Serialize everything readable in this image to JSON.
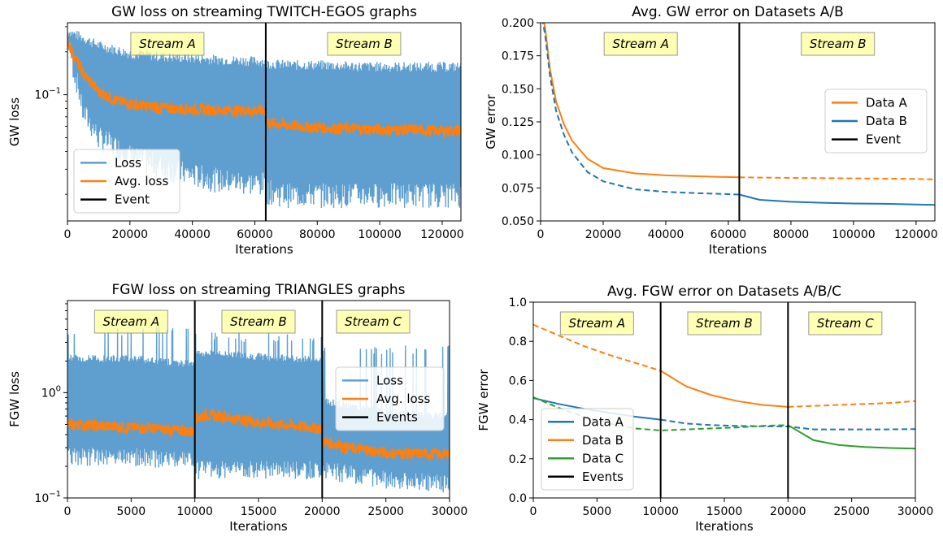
{
  "colors": {
    "loss": "#5f9fcf",
    "blue": "#1f77b4",
    "orange": "#ff7f0e",
    "green": "#2ca02c",
    "event": "#000000",
    "stream_box": "#ffff99"
  },
  "chart_data": [
    {
      "type": "line",
      "title": "GW loss on streaming TWITCH-EGOS graphs",
      "xlabel": "Iterations",
      "ylabel": "GW loss",
      "yscale": "log",
      "xlim": [
        0,
        126000
      ],
      "ylim": [
        0.013,
        0.32
      ],
      "xticks": [
        0,
        20000,
        40000,
        60000,
        80000,
        100000,
        120000
      ],
      "yticks": [
        {
          "value": 0.1,
          "base": "10",
          "exp": "−1"
        }
      ],
      "events": [
        63500
      ],
      "streams": [
        {
          "label": "Stream A",
          "x": 32000
        },
        {
          "label": "Stream B",
          "x": 95000
        }
      ],
      "legend": {
        "position": "lower-left",
        "entries": [
          {
            "label": "Loss",
            "color": "#5f9fcf"
          },
          {
            "label": "Avg. loss",
            "color": "#ff7f0e"
          },
          {
            "label": "Event",
            "color": "#000000"
          }
        ]
      },
      "series": [
        {
          "name": "Loss",
          "kind": "band",
          "color": "#5f9fcf",
          "x": [
            0,
            2000,
            5000,
            10000,
            20000,
            30000,
            40000,
            50000,
            63500,
            63600,
            70000,
            80000,
            90000,
            100000,
            110000,
            120000,
            126000
          ],
          "low": [
            0.2,
            0.12,
            0.06,
            0.04,
            0.03,
            0.025,
            0.022,
            0.02,
            0.019,
            0.017,
            0.016,
            0.016,
            0.016,
            0.016,
            0.016,
            0.016,
            0.016
          ],
          "high": [
            0.3,
            0.29,
            0.27,
            0.24,
            0.21,
            0.2,
            0.195,
            0.19,
            0.185,
            0.18,
            0.175,
            0.175,
            0.172,
            0.17,
            0.17,
            0.17,
            0.17
          ]
        },
        {
          "name": "Avg. loss",
          "kind": "line",
          "color": "#ff7f0e",
          "x": [
            0,
            2000,
            5000,
            10000,
            15000,
            20000,
            30000,
            40000,
            50000,
            63500,
            63600,
            70000,
            80000,
            90000,
            100000,
            110000,
            120000,
            126000
          ],
          "y": [
            0.24,
            0.19,
            0.14,
            0.105,
            0.092,
            0.086,
            0.081,
            0.079,
            0.078,
            0.077,
            0.064,
            0.061,
            0.059,
            0.058,
            0.057,
            0.057,
            0.056,
            0.056
          ],
          "noise": 0.09
        }
      ]
    },
    {
      "type": "line",
      "title": "Avg. GW error on Datasets A/B",
      "xlabel": "Iterations",
      "ylabel": "GW error",
      "yscale": "linear",
      "xlim": [
        0,
        126000
      ],
      "ylim": [
        0.05,
        0.2
      ],
      "xticks": [
        0,
        20000,
        40000,
        60000,
        80000,
        100000,
        120000
      ],
      "yticks": [
        "0.050",
        "0.075",
        "0.100",
        "0.125",
        "0.150",
        "0.175",
        "0.200"
      ],
      "events": [
        63500
      ],
      "streams": [
        {
          "label": "Stream A",
          "x": 32000
        },
        {
          "label": "Stream B",
          "x": 95000
        }
      ],
      "legend": {
        "position": "center-right",
        "entries": [
          {
            "label": "Data A",
            "color": "#ff7f0e"
          },
          {
            "label": "Data B",
            "color": "#1f77b4"
          },
          {
            "label": "Event",
            "color": "#000000"
          }
        ]
      },
      "series": [
        {
          "name": "Data A",
          "color": "#ff7f0e",
          "x": [
            0,
            1500,
            3000,
            5000,
            7500,
            10000,
            15000,
            20000,
            30000,
            40000,
            50000,
            63500,
            70000,
            80000,
            90000,
            100000,
            110000,
            120000,
            126000
          ],
          "y": [
            0.215,
            0.195,
            0.165,
            0.14,
            0.123,
            0.111,
            0.097,
            0.09,
            0.086,
            0.0845,
            0.0838,
            0.083,
            0.0828,
            0.0826,
            0.0824,
            0.0822,
            0.082,
            0.0818,
            0.0815
          ],
          "dashed_after": 63500
        },
        {
          "name": "Data B",
          "color": "#1f77b4",
          "x": [
            0,
            1500,
            3000,
            5000,
            7500,
            10000,
            15000,
            20000,
            30000,
            40000,
            50000,
            63500,
            70000,
            80000,
            90000,
            100000,
            110000,
            120000,
            126000
          ],
          "y": [
            0.21,
            0.19,
            0.16,
            0.133,
            0.115,
            0.102,
            0.087,
            0.08,
            0.074,
            0.072,
            0.071,
            0.07,
            0.066,
            0.0645,
            0.0638,
            0.0632,
            0.063,
            0.0625,
            0.0622
          ],
          "dashed_before": 63500
        }
      ]
    },
    {
      "type": "line",
      "title": "FGW loss on streaming TRIANGLES graphs",
      "xlabel": "Iterations",
      "ylabel": "FGW loss",
      "yscale": "log",
      "xlim": [
        0,
        30000
      ],
      "ylim": [
        0.1,
        7.5
      ],
      "xticks": [
        0,
        5000,
        10000,
        15000,
        20000,
        25000,
        30000
      ],
      "yticks": [
        {
          "value": 1,
          "base": "10",
          "exp": "0"
        },
        {
          "value": 0.1,
          "base": "10",
          "exp": "−1"
        }
      ],
      "events": [
        10000,
        20000
      ],
      "streams": [
        {
          "label": "Stream A",
          "x": 5000
        },
        {
          "label": "Stream B",
          "x": 15000
        },
        {
          "label": "Stream C",
          "x": 24000
        }
      ],
      "legend": {
        "position": "center-right",
        "entries": [
          {
            "label": "Loss",
            "color": "#5f9fcf"
          },
          {
            "label": "Avg. loss",
            "color": "#ff7f0e"
          },
          {
            "label": "Events",
            "color": "#000000"
          }
        ]
      },
      "series": [
        {
          "name": "Loss",
          "kind": "band",
          "color": "#5f9fcf",
          "x": [
            0,
            5000,
            10000,
            10001,
            15000,
            20000,
            20001,
            25000,
            30000
          ],
          "low": [
            0.2,
            0.2,
            0.18,
            0.15,
            0.15,
            0.15,
            0.15,
            0.12,
            0.11
          ],
          "high": [
            2.3,
            2.3,
            2.0,
            2.6,
            2.4,
            2.2,
            0.9,
            0.7,
            0.65
          ],
          "spike_top": [
            4.3,
            3.8,
            2.8
          ]
        },
        {
          "name": "Avg. loss",
          "kind": "line",
          "color": "#ff7f0e",
          "x": [
            0,
            5000,
            10000,
            10001,
            11000,
            15000,
            20000,
            20001,
            22000,
            25000,
            30000
          ],
          "y": [
            0.5,
            0.47,
            0.43,
            0.58,
            0.62,
            0.52,
            0.46,
            0.35,
            0.3,
            0.27,
            0.26
          ],
          "noise": 0.12
        }
      ]
    },
    {
      "type": "line",
      "title": "Avg. FGW error on Datasets A/B/C",
      "xlabel": "Iterations",
      "ylabel": "FGW error",
      "yscale": "linear",
      "xlim": [
        0,
        30000
      ],
      "ylim": [
        0.0,
        1.0
      ],
      "xticks": [
        0,
        5000,
        10000,
        15000,
        20000,
        25000,
        30000
      ],
      "yticks": [
        "0.0",
        "0.2",
        "0.4",
        "0.6",
        "0.8",
        "1.0"
      ],
      "events": [
        10000,
        20000
      ],
      "streams": [
        {
          "label": "Stream A",
          "x": 5000
        },
        {
          "label": "Stream B",
          "x": 15000
        },
        {
          "label": "Stream C",
          "x": 24500
        }
      ],
      "legend": {
        "position": "lower-left",
        "entries": [
          {
            "label": "Data A",
            "color": "#1f77b4"
          },
          {
            "label": "Data B",
            "color": "#ff7f0e"
          },
          {
            "label": "Data C",
            "color": "#2ca02c"
          },
          {
            "label": "Events",
            "color": "#000000"
          }
        ]
      },
      "series": [
        {
          "name": "Data A",
          "color": "#1f77b4",
          "x": [
            0,
            2000,
            4000,
            6000,
            8000,
            10000,
            12000,
            14000,
            16000,
            18000,
            20000,
            22000,
            24000,
            26000,
            28000,
            30000
          ],
          "y": [
            0.51,
            0.48,
            0.455,
            0.435,
            0.415,
            0.4,
            0.38,
            0.372,
            0.368,
            0.366,
            0.365,
            0.35,
            0.35,
            0.35,
            0.35,
            0.352
          ],
          "solid_until": 10000
        },
        {
          "name": "Data B",
          "color": "#ff7f0e",
          "x": [
            0,
            2000,
            4000,
            6000,
            8000,
            10000,
            12000,
            14000,
            16000,
            18000,
            20000,
            22000,
            24000,
            26000,
            28000,
            30000
          ],
          "y": [
            0.885,
            0.83,
            0.775,
            0.73,
            0.69,
            0.65,
            0.57,
            0.525,
            0.495,
            0.475,
            0.465,
            0.47,
            0.475,
            0.48,
            0.485,
            0.495
          ],
          "solid_from": 10000,
          "solid_until": 20000
        },
        {
          "name": "Data C",
          "color": "#2ca02c",
          "x": [
            0,
            2000,
            4000,
            6000,
            8000,
            10000,
            12000,
            14000,
            16000,
            18000,
            20000,
            22000,
            24000,
            26000,
            28000,
            30000
          ],
          "y": [
            0.515,
            0.46,
            0.415,
            0.38,
            0.355,
            0.345,
            0.35,
            0.355,
            0.36,
            0.368,
            0.372,
            0.295,
            0.27,
            0.26,
            0.255,
            0.252
          ],
          "solid_from": 20000
        }
      ]
    }
  ]
}
